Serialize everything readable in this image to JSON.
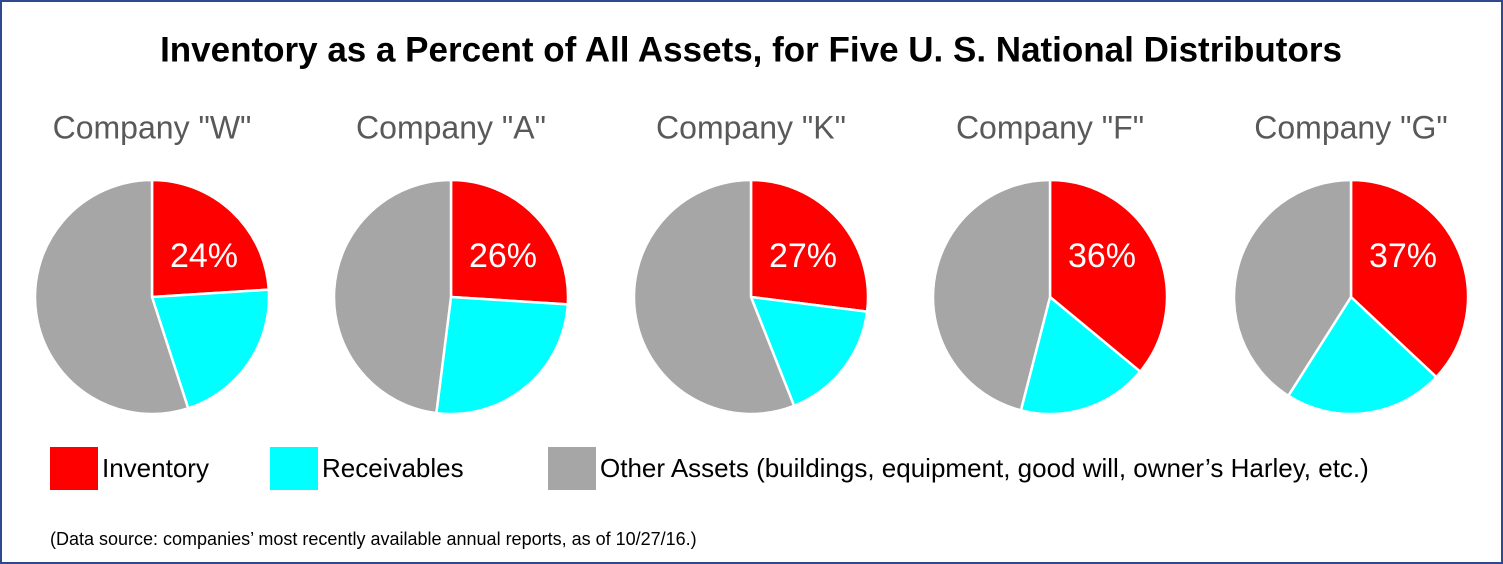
{
  "title": "Inventory as a Percent of All Assets, for Five U. S. National Distributors",
  "chart_data": [
    {
      "type": "pie",
      "title": "Company \"W\"",
      "values": [
        24,
        21,
        55
      ],
      "value_labels": [
        "24%",
        null,
        null
      ]
    },
    {
      "type": "pie",
      "title": "Company \"A\"",
      "values": [
        26,
        26,
        48
      ],
      "value_labels": [
        "26%",
        null,
        null
      ]
    },
    {
      "type": "pie",
      "title": "Company \"K\"",
      "values": [
        27,
        17,
        56
      ],
      "value_labels": [
        "27%",
        null,
        null
      ]
    },
    {
      "type": "pie",
      "title": "Company \"F\"",
      "values": [
        36,
        18,
        46
      ],
      "value_labels": [
        "36%",
        null,
        null
      ]
    },
    {
      "type": "pie",
      "title": "Company \"G\"",
      "values": [
        37,
        22,
        41
      ],
      "value_labels": [
        "37%",
        null,
        null
      ]
    }
  ],
  "legend": {
    "labels": [
      "Inventory",
      "Receivables",
      "Other Assets (buildings, equipment, good will, owner’s Harley, etc.)"
    ],
    "colors": [
      "#ff0000",
      "#00ffff",
      "#a6a6a6"
    ]
  },
  "source": "(Data source:  companies’ most recently available annual reports, as of 10/27/16.)"
}
